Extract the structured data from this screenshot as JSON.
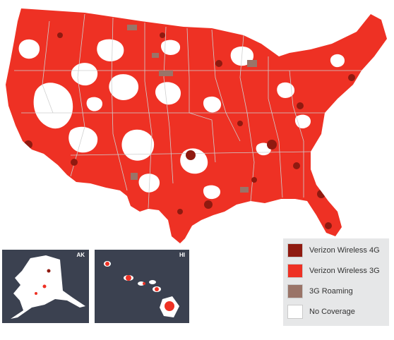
{
  "colors": {
    "coverage_4g": "#8f1a10",
    "coverage_3g": "#ee3124",
    "roaming_3g": "#9a7468",
    "no_coverage": "#ffffff",
    "state_border": "#cfcfcf",
    "inset_background": "#3b4150",
    "legend_background": "#e6e7e8"
  },
  "insets": [
    {
      "label": "AK"
    },
    {
      "label": "HI"
    }
  ],
  "legend": {
    "items": [
      {
        "label": "Verizon Wireless 4G",
        "color_key": "coverage_4g"
      },
      {
        "label": "Verizon Wireless 3G",
        "color_key": "coverage_3g"
      },
      {
        "label": "3G Roaming",
        "color_key": "roaming_3g"
      },
      {
        "label": "No Coverage",
        "color_key": "no_coverage"
      }
    ]
  }
}
